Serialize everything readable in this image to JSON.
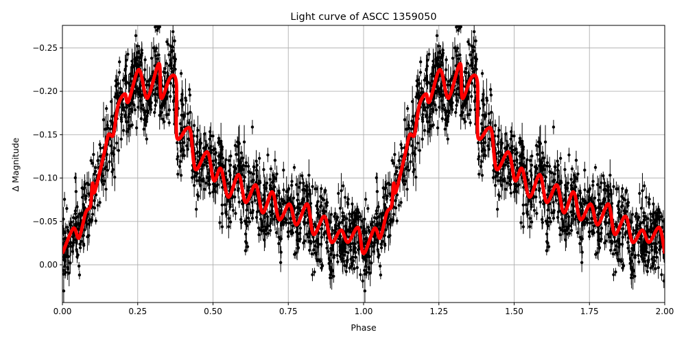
{
  "chart_data": {
    "type": "scatter",
    "title": "Light curve of ASCC 1359050",
    "xlabel": "Phase",
    "ylabel": "Δ Magnitude",
    "xlim": [
      0,
      2
    ],
    "ylim": [
      0.0435,
      -0.276
    ],
    "y_inverted": true,
    "grid": true,
    "xticks": [
      0,
      0.25,
      0.5,
      0.75,
      1.0,
      1.25,
      1.5,
      1.75,
      2.0
    ],
    "xtick_labels": [
      "0.00",
      "0.25",
      "0.50",
      "0.75",
      "1.00",
      "1.25",
      "1.50",
      "1.75",
      "2.00"
    ],
    "yticks": [
      -0.25,
      -0.2,
      -0.15,
      -0.1,
      -0.05,
      0.0
    ],
    "ytick_labels": [
      "−0.25",
      "−0.20",
      "−0.15",
      "−0.10",
      "−0.05",
      "0.00"
    ],
    "colors": {
      "observations": "#000000",
      "model": "#ff0000",
      "grid": "#b0b0b0"
    },
    "series": [
      {
        "kind": "observations with error bars",
        "style": "black points with vertical error bars, heavy scatter around model"
      },
      {
        "kind": "model curve",
        "phase": [
          0.0,
          0.036,
          0.055,
          0.077,
          0.093,
          0.1,
          0.107,
          0.139,
          0.153,
          0.169,
          0.185,
          0.207,
          0.219,
          0.253,
          0.276,
          0.289,
          0.321,
          0.328,
          0.358,
          0.378,
          0.38,
          0.412,
          0.426,
          0.442,
          0.481,
          0.503,
          0.526,
          0.551,
          0.585,
          0.608,
          0.642,
          0.665,
          0.697,
          0.72,
          0.754,
          0.777,
          0.813,
          0.834,
          0.87,
          0.893,
          0.925,
          0.948,
          0.982,
          1.0,
          1.036,
          1.055,
          1.077,
          1.093,
          1.1,
          1.107,
          1.139,
          1.153,
          1.169,
          1.185,
          1.207,
          1.219,
          1.253,
          1.276,
          1.289,
          1.321,
          1.328,
          1.358,
          1.378,
          1.38,
          1.412,
          1.426,
          1.442,
          1.481,
          1.503,
          1.526,
          1.551,
          1.585,
          1.608,
          1.642,
          1.665,
          1.697,
          1.72,
          1.754,
          1.777,
          1.813,
          1.834,
          1.87,
          1.893,
          1.925,
          1.948,
          1.982,
          2.0
        ],
        "magnitude": [
          -0.013,
          -0.042,
          -0.031,
          -0.06,
          -0.068,
          -0.094,
          -0.084,
          -0.129,
          -0.15,
          -0.15,
          -0.184,
          -0.197,
          -0.188,
          -0.225,
          -0.195,
          -0.197,
          -0.232,
          -0.192,
          -0.216,
          -0.21,
          -0.147,
          -0.157,
          -0.153,
          -0.11,
          -0.13,
          -0.097,
          -0.111,
          -0.078,
          -0.104,
          -0.072,
          -0.092,
          -0.06,
          -0.084,
          -0.052,
          -0.07,
          -0.046,
          -0.07,
          -0.035,
          -0.056,
          -0.026,
          -0.04,
          -0.026,
          -0.043,
          -0.013,
          -0.042,
          -0.031,
          -0.06,
          -0.068,
          -0.094,
          -0.084,
          -0.129,
          -0.15,
          -0.15,
          -0.184,
          -0.197,
          -0.188,
          -0.225,
          -0.195,
          -0.197,
          -0.232,
          -0.192,
          -0.216,
          -0.21,
          -0.147,
          -0.157,
          -0.153,
          -0.11,
          -0.13,
          -0.097,
          -0.111,
          -0.078,
          -0.104,
          -0.072,
          -0.092,
          -0.06,
          -0.084,
          -0.052,
          -0.07,
          -0.046,
          -0.07,
          -0.035,
          -0.056,
          -0.026,
          -0.04,
          -0.026,
          -0.043,
          -0.013
        ]
      }
    ]
  }
}
